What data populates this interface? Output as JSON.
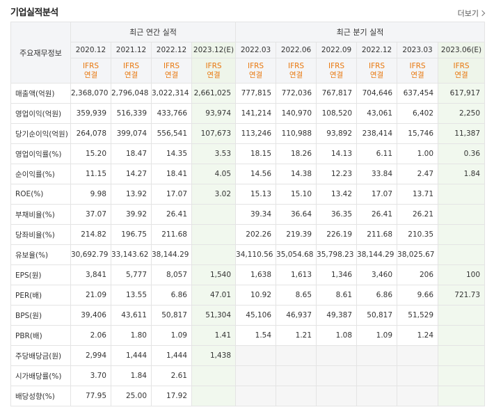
{
  "section_title": "기업실적분석",
  "more_label": "더보기",
  "header": {
    "corner": "주요재무정보",
    "annual_group": "최근 연간 실적",
    "quarterly_group": "최근 분기 실적",
    "annual_periods": [
      "2020.12",
      "2021.12",
      "2022.12",
      "2023.12(E)"
    ],
    "quarterly_periods": [
      "2022.03",
      "2022.06",
      "2022.09",
      "2022.12",
      "2023.03",
      "2023.06(E)"
    ],
    "standard_line1": "IFRS",
    "standard_line2": "연결"
  },
  "rows": [
    {
      "label": "매출액(억원)",
      "annual": [
        "2,368,070",
        "2,796,048",
        "3,022,314",
        "2,661,025"
      ],
      "quarterly": [
        "777,815",
        "772,036",
        "767,817",
        "704,646",
        "637,454",
        "617,917"
      ]
    },
    {
      "label": "영업이익(억원)",
      "annual": [
        "359,939",
        "516,339",
        "433,766",
        "93,974"
      ],
      "quarterly": [
        "141,214",
        "140,970",
        "108,520",
        "43,061",
        "6,402",
        "2,250"
      ]
    },
    {
      "label": "당기순이익(억원)",
      "annual": [
        "264,078",
        "399,074",
        "556,541",
        "107,673"
      ],
      "quarterly": [
        "113,246",
        "110,988",
        "93,892",
        "238,414",
        "15,746",
        "11,387"
      ]
    },
    {
      "label": "영업이익률(%)",
      "annual": [
        "15.20",
        "18.47",
        "14.35",
        "3.53"
      ],
      "quarterly": [
        "18.15",
        "18.26",
        "14.13",
        "6.11",
        "1.00",
        "0.36"
      ]
    },
    {
      "label": "순이익률(%)",
      "annual": [
        "11.15",
        "14.27",
        "18.41",
        "4.05"
      ],
      "quarterly": [
        "14.56",
        "14.38",
        "12.23",
        "33.84",
        "2.47",
        "1.84"
      ]
    },
    {
      "label": "ROE(%)",
      "annual": [
        "9.98",
        "13.92",
        "17.07",
        "3.02"
      ],
      "quarterly": [
        "15.13",
        "15.10",
        "13.42",
        "17.07",
        "13.71",
        ""
      ]
    },
    {
      "label": "부채비율(%)",
      "annual": [
        "37.07",
        "39.92",
        "26.41",
        ""
      ],
      "quarterly": [
        "39.34",
        "36.64",
        "36.35",
        "26.41",
        "26.21",
        ""
      ]
    },
    {
      "label": "당좌비율(%)",
      "annual": [
        "214.82",
        "196.75",
        "211.68",
        ""
      ],
      "quarterly": [
        "202.26",
        "219.39",
        "226.19",
        "211.68",
        "210.35",
        ""
      ]
    },
    {
      "label": "유보율(%)",
      "annual": [
        "30,692.79",
        "33,143.62",
        "38,144.29",
        ""
      ],
      "quarterly": [
        "34,110.56",
        "35,054.68",
        "35,798.23",
        "38,144.29",
        "38,025.67",
        ""
      ]
    },
    {
      "label": "EPS(원)",
      "annual": [
        "3,841",
        "5,777",
        "8,057",
        "1,540"
      ],
      "quarterly": [
        "1,638",
        "1,613",
        "1,346",
        "3,460",
        "206",
        "100"
      ]
    },
    {
      "label": "PER(배)",
      "annual": [
        "21.09",
        "13.55",
        "6.86",
        "47.01"
      ],
      "quarterly": [
        "10.92",
        "8.65",
        "8.61",
        "6.86",
        "9.66",
        "721.73"
      ]
    },
    {
      "label": "BPS(원)",
      "annual": [
        "39,406",
        "43,611",
        "50,817",
        "51,304"
      ],
      "quarterly": [
        "45,106",
        "46,937",
        "49,387",
        "50,817",
        "51,529",
        ""
      ]
    },
    {
      "label": "PBR(배)",
      "annual": [
        "2.06",
        "1.80",
        "1.09",
        "1.41"
      ],
      "quarterly": [
        "1.54",
        "1.21",
        "1.08",
        "1.09",
        "1.24",
        ""
      ]
    },
    {
      "label": "주당배당금(원)",
      "annual": [
        "2,994",
        "1,444",
        "1,444",
        "1,438"
      ],
      "quarterly": [
        "",
        "",
        "",
        "",
        "",
        ""
      ]
    },
    {
      "label": "시가배당률(%)",
      "annual": [
        "3.70",
        "1.84",
        "2.61",
        ""
      ],
      "quarterly": [
        "",
        "",
        "",
        "",
        "",
        ""
      ]
    },
    {
      "label": "배당성향(%)",
      "annual": [
        "77.95",
        "25.00",
        "17.92",
        ""
      ],
      "quarterly": [
        "",
        "",
        "",
        "",
        "",
        ""
      ]
    }
  ]
}
